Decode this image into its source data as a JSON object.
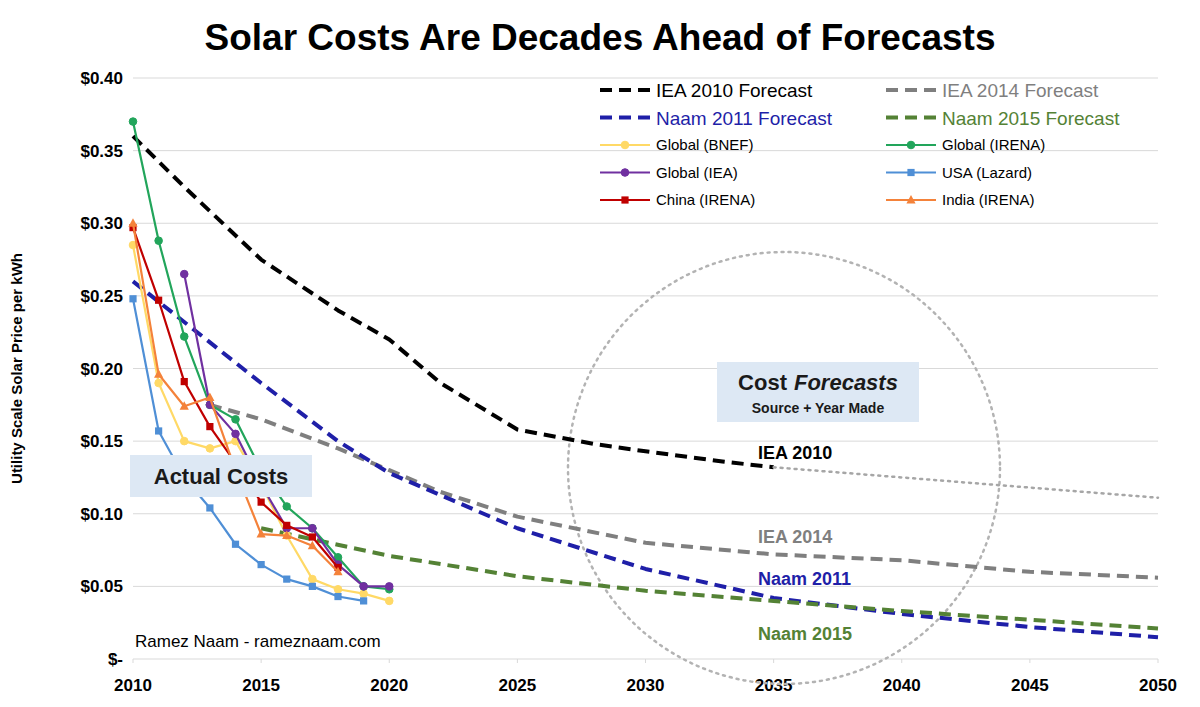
{
  "chart_data": {
    "type": "line",
    "title": "Solar Costs Are Decades Ahead of Forecasts",
    "y_label": "Utility Scale Solar Price per kWh",
    "xlim": [
      2010,
      2050
    ],
    "ylim": [
      0,
      0.4
    ],
    "xticks": [
      2010,
      2015,
      2020,
      2025,
      2030,
      2035,
      2040,
      2045,
      2050
    ],
    "yticks": [
      {
        "value": 0,
        "label": "$-"
      },
      {
        "value": 0.05,
        "label": "$0.05"
      },
      {
        "value": 0.1,
        "label": "$0.10"
      },
      {
        "value": 0.15,
        "label": "$0.15"
      },
      {
        "value": 0.2,
        "label": "$0.20"
      },
      {
        "value": 0.25,
        "label": "$0.25"
      },
      {
        "value": 0.3,
        "label": "$0.30"
      },
      {
        "value": 0.35,
        "label": "$0.35"
      },
      {
        "value": 0.4,
        "label": "$0.40"
      }
    ],
    "grid": "y",
    "legend": "top right",
    "series": [
      {
        "name": "IEA 2010 Forecast",
        "color": "#000000",
        "line_style": "dashed",
        "marker": "none",
        "x": [
          2010,
          2012,
          2015,
          2018,
          2020,
          2022,
          2025,
          2028,
          2030,
          2033,
          2035
        ],
        "values": [
          0.36,
          0.325,
          0.275,
          0.24,
          0.22,
          0.19,
          0.158,
          0.148,
          0.143,
          0.136,
          0.132
        ]
      },
      {
        "name": "IEA 2014 Forecast",
        "color": "#7f7f7f",
        "line_style": "dashed",
        "marker": "none",
        "x": [
          2013,
          2015,
          2018,
          2020,
          2022,
          2025,
          2030,
          2035,
          2040,
          2045,
          2050
        ],
        "values": [
          0.175,
          0.165,
          0.145,
          0.13,
          0.115,
          0.098,
          0.08,
          0.072,
          0.068,
          0.06,
          0.056
        ]
      },
      {
        "name": "Naam 2011 Forecast",
        "color": "#1f1fa8",
        "line_style": "dashed",
        "marker": "none",
        "x": [
          2010,
          2015,
          2018,
          2020,
          2025,
          2030,
          2035,
          2040,
          2045,
          2050
        ],
        "values": [
          0.26,
          0.19,
          0.15,
          0.128,
          0.09,
          0.062,
          0.042,
          0.031,
          0.022,
          0.015
        ]
      },
      {
        "name": "Naam 2015 Forecast",
        "color": "#548235",
        "line_style": "dashed",
        "marker": "none",
        "x": [
          2015,
          2020,
          2025,
          2030,
          2035,
          2040,
          2045,
          2050
        ],
        "values": [
          0.09,
          0.071,
          0.057,
          0.047,
          0.04,
          0.033,
          0.027,
          0.021
        ]
      },
      {
        "name": "Global (BNEF)",
        "color": "#ffd966",
        "line_style": "solid",
        "marker": "circle",
        "x": [
          2010,
          2011,
          2012,
          2013,
          2014,
          2015,
          2016,
          2017,
          2018,
          2019,
          2020
        ],
        "values": [
          0.285,
          0.19,
          0.15,
          0.145,
          0.15,
          0.12,
          0.085,
          0.055,
          0.048,
          0.045,
          0.04
        ]
      },
      {
        "name": "Global (IRENA)",
        "color": "#22a55b",
        "line_style": "solid",
        "marker": "circle",
        "x": [
          2010,
          2011,
          2012,
          2013,
          2014,
          2015,
          2016,
          2017,
          2018,
          2019,
          2020
        ],
        "values": [
          0.37,
          0.288,
          0.222,
          0.175,
          0.165,
          0.13,
          0.105,
          0.09,
          0.07,
          0.05,
          0.048
        ]
      },
      {
        "name": "Global (IEA)",
        "color": "#7030a0",
        "line_style": "solid",
        "marker": "circle",
        "x": [
          2012,
          2013,
          2014,
          2015,
          2016,
          2017,
          2018,
          2019,
          2020
        ],
        "values": [
          0.265,
          0.175,
          0.155,
          0.12,
          0.09,
          0.09,
          0.065,
          0.05,
          0.05
        ]
      },
      {
        "name": "USA (Lazard)",
        "color": "#4f8fd6",
        "line_style": "solid",
        "marker": "square",
        "x": [
          2010,
          2011,
          2012,
          2013,
          2014,
          2015,
          2016,
          2017,
          2018,
          2019
        ],
        "values": [
          0.248,
          0.157,
          0.125,
          0.104,
          0.079,
          0.065,
          0.055,
          0.05,
          0.043,
          0.04
        ]
      },
      {
        "name": "China (IRENA)",
        "color": "#c00000",
        "line_style": "solid",
        "marker": "square",
        "x": [
          2010,
          2011,
          2012,
          2013,
          2014,
          2015,
          2016,
          2017,
          2018
        ],
        "values": [
          0.297,
          0.247,
          0.191,
          0.16,
          0.135,
          0.108,
          0.092,
          0.084,
          0.063
        ]
      },
      {
        "name": "India (IRENA)",
        "color": "#f4823a",
        "line_style": "solid",
        "marker": "triangle",
        "x": [
          2010,
          2011,
          2012,
          2013,
          2014,
          2015,
          2016,
          2017,
          2018
        ],
        "values": [
          0.3,
          0.196,
          0.174,
          0.18,
          0.13,
          0.086,
          0.085,
          0.078,
          0.06
        ]
      },
      {
        "color": "#a6a6a6",
        "line_style": "dotted",
        "marker": "none",
        "x": [
          2035,
          2040,
          2045,
          2050
        ],
        "values": [
          0.132,
          0.125,
          0.118,
          0.111
        ]
      }
    ],
    "annotations": [
      {
        "text": "IEA 2010",
        "color": "#000000"
      },
      {
        "text": "IEA 2014",
        "color": "#7f7f7f"
      },
      {
        "text": "Naam 2011",
        "color": "#1f1fa8"
      },
      {
        "text": "Naam 2015",
        "color": "#548235"
      },
      {
        "text": "Actual Costs",
        "color": "#1a1a1a"
      },
      {
        "text": "Ramez Naam - rameznaam.com",
        "color": "#000000"
      }
    ],
    "forecast_box": {
      "title": [
        "Cost",
        "Forecasts"
      ],
      "subtitle": "Source + Year Made"
    }
  }
}
